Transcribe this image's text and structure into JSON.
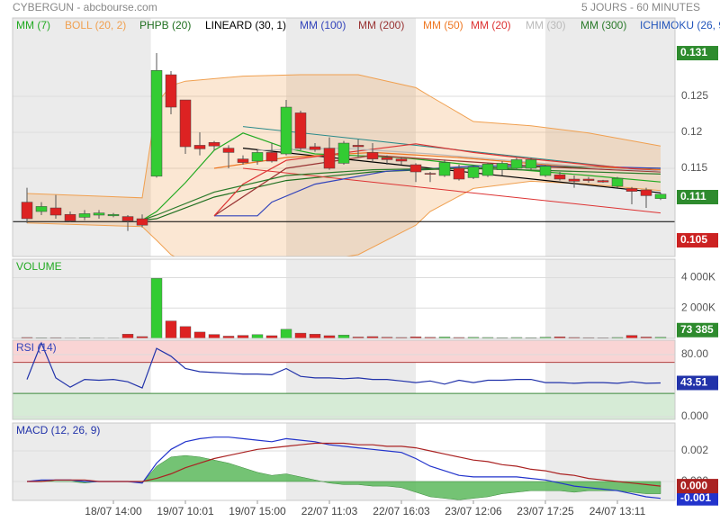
{
  "header": {
    "title": "CYBERGUN - abcbourse.com",
    "period": "5 JOURS - 60 MINUTES"
  },
  "chart_data": [
    {
      "type": "candlestick",
      "xlim": [
        -1,
        45
      ],
      "ylim": [
        0.10275,
        0.13588
      ],
      "yticks": [
        0.115,
        0.12,
        0.125
      ],
      "grid": true,
      "shaded": [
        [
          -1,
          8.6
        ],
        [
          18,
          27
        ],
        [
          36,
          45
        ]
      ],
      "up_color": "#33cc33",
      "down_color": "#dd2222",
      "open": [
        0.1103,
        0.109,
        0.1095,
        0.1086,
        0.1082,
        0.1085,
        0.1084,
        0.1083,
        0.108,
        0.1139,
        0.128,
        0.1245,
        0.1182,
        0.1186,
        0.1178,
        0.1163,
        0.116,
        0.1172,
        0.117,
        0.1227,
        0.118,
        0.1178,
        0.1157,
        0.1182,
        0.1172,
        0.1165,
        0.1163,
        0.1155,
        0.1143,
        0.114,
        0.115,
        0.1137,
        0.114,
        0.1148,
        0.115,
        0.115,
        0.114,
        0.1141,
        0.1135,
        0.1135,
        0.1133,
        0.1125,
        0.1122,
        0.112,
        0.1108
      ],
      "high": [
        0.1123,
        0.1103,
        0.1113,
        0.109,
        0.1092,
        0.1092,
        0.1088,
        0.1085,
        0.1086,
        0.131,
        0.1285,
        0.1245,
        0.12,
        0.1188,
        0.1182,
        0.1168,
        0.1175,
        0.1185,
        0.1245,
        0.123,
        0.1185,
        0.1193,
        0.1188,
        0.119,
        0.1185,
        0.1168,
        0.1165,
        0.1157,
        0.1145,
        0.1162,
        0.1155,
        0.1155,
        0.1158,
        0.116,
        0.1165,
        0.1165,
        0.1155,
        0.1145,
        0.114,
        0.1138,
        0.1134,
        0.1138,
        0.1124,
        0.1123,
        0.1116
      ],
      "low": [
        0.1074,
        0.1085,
        0.108,
        0.1075,
        0.1078,
        0.108,
        0.1082,
        0.1063,
        0.1068,
        0.1137,
        0.1225,
        0.117,
        0.1168,
        0.1175,
        0.115,
        0.1155,
        0.1155,
        0.1158,
        0.1168,
        0.1175,
        0.1173,
        0.1148,
        0.1155,
        0.1165,
        0.116,
        0.1155,
        0.1155,
        0.1131,
        0.1131,
        0.1138,
        0.1133,
        0.1135,
        0.1138,
        0.114,
        0.1148,
        0.1148,
        0.1138,
        0.1133,
        0.1123,
        0.113,
        0.113,
        0.1123,
        0.11,
        0.1095,
        0.1106
      ],
      "close": [
        0.108,
        0.1097,
        0.1085,
        0.1077,
        0.1087,
        0.1088,
        0.1086,
        0.1077,
        0.1071,
        0.1286,
        0.1235,
        0.118,
        0.1177,
        0.1181,
        0.1172,
        0.1158,
        0.1172,
        0.116,
        0.1235,
        0.1178,
        0.1176,
        0.115,
        0.1185,
        0.118,
        0.1163,
        0.1162,
        0.116,
        0.1145,
        0.1142,
        0.1158,
        0.1135,
        0.1152,
        0.1156,
        0.1157,
        0.1162,
        0.1162,
        0.1153,
        0.1135,
        0.1132,
        0.1133,
        0.1131,
        0.1136,
        0.1118,
        0.1112,
        0.1114
      ],
      "series": [
        {
          "name": "MM (7)",
          "color": "#22aa22",
          "x": [
            8,
            9,
            11,
            13,
            15,
            18,
            20,
            26,
            33,
            39,
            44
          ],
          "values": [
            0.1078,
            0.109,
            0.113,
            0.1175,
            0.1199,
            0.1178,
            0.117,
            0.1165,
            0.115,
            0.114,
            0.1131
          ]
        },
        {
          "name": "BOLL (20, 2)",
          "color": "#f0a050",
          "x": [
            0,
            8,
            9,
            10,
            11,
            15,
            19,
            23,
            27,
            28,
            31,
            35,
            39,
            44
          ],
          "upper": [
            0.1115,
            0.1109,
            0.124,
            0.1265,
            0.1271,
            0.1278,
            0.128,
            0.128,
            0.1262,
            0.125,
            0.1215,
            0.1209,
            0.1199,
            0.1181
          ],
          "lower": [
            0.1074,
            0.1069,
            0.105,
            0.103,
            0.102,
            0.1015,
            0.1018,
            0.103,
            0.1071,
            0.109,
            0.1122,
            0.1132,
            0.1128,
            0.1119
          ]
        },
        {
          "name": "PHPB (20)",
          "color": "#1f6f1f",
          "x": [
            8,
            9,
            13,
            18,
            24,
            30,
            36,
            44
          ],
          "values": [
            0.1078,
            0.108,
            0.111,
            0.1133,
            0.1145,
            0.115,
            0.1152,
            0.115
          ]
        },
        {
          "name": "LINEARD (30, 1)",
          "color": "#000000",
          "x": [
            15,
            44
          ],
          "values": [
            0.1178,
            0.1116
          ],
          "upper": [
            0.1208,
            0.1145
          ],
          "lower": [
            0.115,
            0.1088
          ],
          "upper_color": "#2a8a8a",
          "lower_color": "#dd3333",
          "hline": 0.1076
        },
        {
          "name": "MM (100)",
          "color": "#3344bb",
          "x": [
            13,
            16,
            17,
            20,
            25,
            31,
            36,
            44
          ],
          "values": [
            0.1084,
            0.1084,
            0.1103,
            0.1128,
            0.1146,
            0.1153,
            0.1154,
            0.115
          ]
        },
        {
          "name": "MM (200)",
          "color": "#993333",
          "x": [
            13,
            18,
            24,
            30,
            36,
            44
          ],
          "values": [
            0.1084,
            0.115,
            0.1168,
            0.116,
            0.1152,
            0.1145
          ]
        },
        {
          "name": "MM (50)",
          "color": "#ee7722",
          "x": [
            13,
            18,
            24,
            30,
            36,
            44
          ],
          "values": [
            0.115,
            0.1165,
            0.1172,
            0.1165,
            0.1155,
            0.1148
          ]
        },
        {
          "name": "MM (20)",
          "color": "#dd3333",
          "x": [
            13,
            15,
            18,
            23,
            27,
            31,
            35,
            39,
            44
          ],
          "values": [
            0.1084,
            0.1128,
            0.1161,
            0.1174,
            0.1184,
            0.1172,
            0.1163,
            0.1155,
            0.1146
          ]
        },
        {
          "name": "MM (30)",
          "color": "#bbbbbb",
          "x": [
            16,
            22,
            28,
            34,
            40,
            44
          ],
          "values": [
            0.1175,
            0.1178,
            0.117,
            0.116,
            0.115,
            0.1146
          ]
        },
        {
          "name": "MM (300)",
          "color": "#2a7a2a",
          "x": [
            8,
            9,
            13,
            18,
            24,
            30,
            36,
            44
          ],
          "values": [
            0.1078,
            0.1085,
            0.1117,
            0.114,
            0.1148,
            0.115,
            0.1147,
            0.1142
          ]
        },
        {
          "name": "ICHIMOKU (26, 9",
          "color": "#2255bb"
        }
      ],
      "markers": [
        {
          "value": 0.131,
          "color": "#2e8b2e"
        },
        {
          "value": 0.111,
          "color": "#2e8b2e"
        },
        {
          "value": 0.105,
          "color": "#cc2222"
        }
      ]
    },
    {
      "type": "bar",
      "title": "VOLUME",
      "title_color": "#22aa22",
      "xlim": [
        -1,
        45
      ],
      "ylim": [
        0,
        5212000
      ],
      "yticks": [
        {
          "value": 2000000,
          "label": "2 000K"
        },
        {
          "value": 4000000,
          "label": "4 000K"
        }
      ],
      "values": [
        60000,
        40000,
        50000,
        30000,
        40000,
        30000,
        30000,
        280000,
        120000,
        3950000,
        1150000,
        780000,
        420000,
        260000,
        150000,
        200000,
        250000,
        180000,
        600000,
        350000,
        280000,
        180000,
        220000,
        90000,
        120000,
        80000,
        60000,
        100000,
        70000,
        90000,
        60000,
        70000,
        60000,
        50000,
        60000,
        50000,
        80000,
        100000,
        60000,
        50000,
        40000,
        60000,
        200000,
        90000,
        73385
      ],
      "last_label": "73 385",
      "last_color": "#2e8b2e"
    },
    {
      "type": "line",
      "title": "RSI (14)",
      "title_color": "#3344bb",
      "xlim": [
        -1,
        45
      ],
      "ylim": [
        -3.5,
        98.6
      ],
      "yticks": [
        {
          "value": 0,
          "label": "0.000"
        },
        {
          "value": 80,
          "label": "80.00"
        }
      ],
      "zones": [
        {
          "from": 70,
          "to": 98.6,
          "color": "#f9d4d4",
          "edge": "#b04040"
        },
        {
          "from": -3.5,
          "to": 30,
          "color": "#d6ebd6",
          "edge": "#3d8a3d"
        }
      ],
      "series": [
        {
          "color": "#2233aa",
          "values": [
            48,
            95,
            50,
            38,
            48,
            47,
            48,
            45,
            37,
            88,
            78,
            62,
            58,
            57,
            56,
            55,
            55,
            54,
            62,
            52,
            50,
            50,
            49,
            50,
            48,
            48,
            46,
            44,
            46,
            42,
            47,
            44,
            47,
            47,
            48,
            48,
            44,
            44,
            43,
            44,
            44,
            43,
            45,
            43,
            43.51
          ],
          "last_color": "#2233aa"
        }
      ]
    },
    {
      "type": "line",
      "title": "MACD (12, 26, 9)",
      "title_color": "#2233aa",
      "xlim": [
        -1,
        45
      ],
      "ylim": [
        -0.001235,
        0.003824
      ],
      "yticks": [
        {
          "value": 0,
          "label": "0.000"
        },
        0.002
      ],
      "xticks": [
        {
          "value": 6,
          "label": "18/07 14:00"
        },
        {
          "value": 11,
          "label": "19/07 10:01"
        },
        {
          "value": 16,
          "label": "19/07 15:00"
        },
        {
          "value": 21,
          "label": "22/07 11:03"
        },
        {
          "value": 26,
          "label": "22/07 16:03"
        },
        {
          "value": 31,
          "label": "23/07 12:06"
        },
        {
          "value": 36,
          "label": "23/07 17:25"
        },
        {
          "value": 41,
          "label": "24/07 13:11"
        }
      ],
      "histogram": {
        "color": "#5cb85c",
        "values": [
          0,
          0.0001,
          0,
          0,
          -0.0001,
          0,
          0,
          0,
          -0.0001,
          0.001,
          0.0016,
          0.0017,
          0.0016,
          0.0014,
          0.0012,
          0.0009,
          0.0006,
          0.0004,
          0.0005,
          0.0003,
          0.0001,
          -0.0001,
          -0.0002,
          -0.0002,
          -0.0003,
          -0.0003,
          -0.0004,
          -0.0007,
          -0.001,
          -0.0011,
          -0.0012,
          -0.0011,
          -0.001,
          -0.0008,
          -0.0007,
          -0.0006,
          -0.0006,
          -0.0006,
          -0.0007,
          -0.0006,
          -0.0006,
          -0.0006,
          -0.0007,
          -0.0008,
          -0.0008
        ]
      },
      "series": [
        {
          "color": "#2233cc",
          "values": [
            0,
            0.0001,
            0.0001,
            0.0001,
            0,
            0,
            0,
            0,
            -0.0001,
            0.0012,
            0.0021,
            0.0026,
            0.0028,
            0.0029,
            0.0029,
            0.0028,
            0.0027,
            0.0026,
            0.0028,
            0.0027,
            0.0026,
            0.0024,
            0.0023,
            0.0022,
            0.0021,
            0.002,
            0.0019,
            0.0015,
            0.001,
            0.0007,
            0.0004,
            0.0003,
            0.0003,
            0.0003,
            0.0003,
            0.0002,
            0.0001,
            -0.0001,
            -0.0003,
            -0.0004,
            -0.0005,
            -0.0006,
            -0.0008,
            -0.001,
            -0.0011
          ],
          "last_label": "-0.001"
        },
        {
          "color": "#aa2222",
          "values": [
            0,
            0,
            0.0001,
            0.0001,
            0.0001,
            0,
            0,
            0,
            0,
            0.0002,
            0.0005,
            0.0009,
            0.0012,
            0.0015,
            0.0017,
            0.0019,
            0.0021,
            0.0022,
            0.0023,
            0.0024,
            0.0025,
            0.0025,
            0.0025,
            0.0024,
            0.0024,
            0.0023,
            0.0023,
            0.0022,
            0.002,
            0.0018,
            0.0016,
            0.0014,
            0.0013,
            0.0011,
            0.001,
            0.0008,
            0.0007,
            0.0005,
            0.0004,
            0.0002,
            0.0001,
            0,
            -0.0001,
            -0.0002,
            -0.0003
          ],
          "last_label": "0.000"
        }
      ]
    }
  ]
}
